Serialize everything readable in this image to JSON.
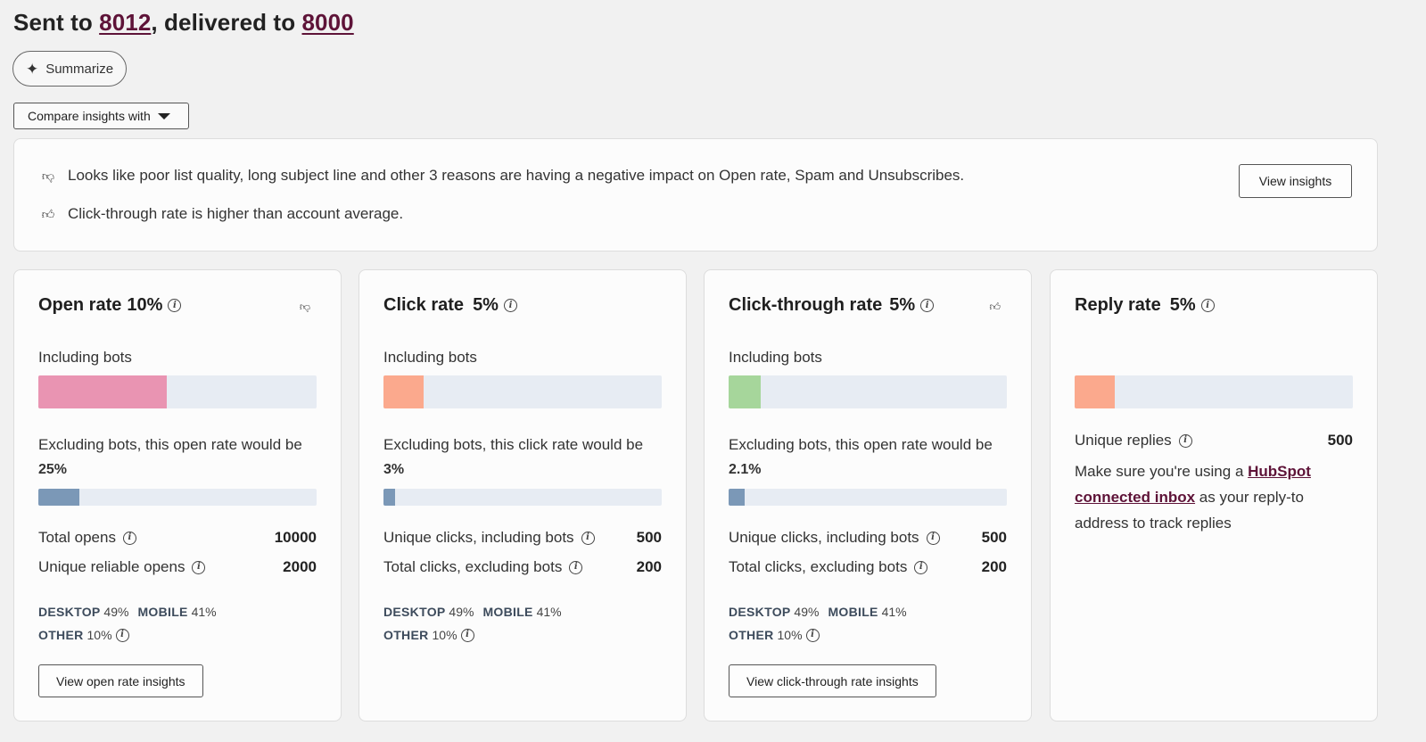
{
  "header": {
    "sent_prefix": "Sent to ",
    "sent_count": "8012",
    "delivered_prefix": ", delivered to ",
    "delivered_count": "8000"
  },
  "summarize": {
    "label": "Summarize",
    "icon": "sparkle-icon"
  },
  "compare": {
    "label": "Compare insights with"
  },
  "insights": {
    "negative": "Looks like poor list quality, long subject line and other 3 reasons are having a negative impact on Open rate, Spam and Unsubscribes.",
    "positive": "Click-through rate is higher than account average.",
    "view_button": "View insights"
  },
  "cards": [
    {
      "title": "Open rate",
      "rate": "10%",
      "sentiment": "thumbs-down",
      "including_label": "Including bots",
      "including_fill": 0.46,
      "including_color": "#e994b2",
      "excluding_text": "Excluding bots, this open rate would be",
      "excluding_value": "25%",
      "excluding_fill": 0.146,
      "stats": [
        {
          "label": "Total opens",
          "value": "10000"
        },
        {
          "label": "Unique reliable opens",
          "value": "2000"
        }
      ],
      "devices": {
        "desktop_label": "DESKTOP",
        "desktop": "49%",
        "mobile_label": "MOBILE",
        "mobile": "41%",
        "other_label": "OTHER",
        "other": "10%"
      },
      "button": "View open rate insights"
    },
    {
      "title": "Click rate",
      "rate": "5%",
      "including_label": "Including bots",
      "including_fill": 0.144,
      "including_color": "#fba98d",
      "excluding_text": "Excluding bots, this click rate would be",
      "excluding_value": "3%",
      "excluding_fill": 0.042,
      "stats": [
        {
          "label": "Unique clicks, including bots",
          "value": "500"
        },
        {
          "label": "Total clicks, excluding bots",
          "value": "200"
        }
      ],
      "devices": {
        "desktop_label": "DESKTOP",
        "desktop": "49%",
        "mobile_label": "MOBILE",
        "mobile": "41%",
        "other_label": "OTHER",
        "other": "10%"
      }
    },
    {
      "title": "Click-through rate",
      "rate": "5%",
      "sentiment": "thumbs-up",
      "including_label": "Including bots",
      "including_fill": 0.115,
      "including_color": "#a6d69b",
      "excluding_text": "Excluding bots, this open rate would be",
      "excluding_value": "2.1%",
      "excluding_fill": 0.058,
      "stats": [
        {
          "label": "Unique clicks, including bots",
          "value": "500"
        },
        {
          "label": "Total clicks, excluding bots",
          "value": "200"
        }
      ],
      "devices": {
        "desktop_label": "DESKTOP",
        "desktop": "49%",
        "mobile_label": "MOBILE",
        "mobile": "41%",
        "other_label": "OTHER",
        "other": "10%"
      },
      "button": "View click-through rate insights"
    },
    {
      "title": "Reply rate",
      "rate": "5%",
      "including_fill": 0.144,
      "including_color": "#fba98d",
      "stats": [
        {
          "label": "Unique replies",
          "value": "500"
        }
      ],
      "note_prefix": "Make sure you're using a ",
      "note_link": "HubSpot connected inbox",
      "note_suffix": " as your reply-to address to track replies"
    }
  ]
}
